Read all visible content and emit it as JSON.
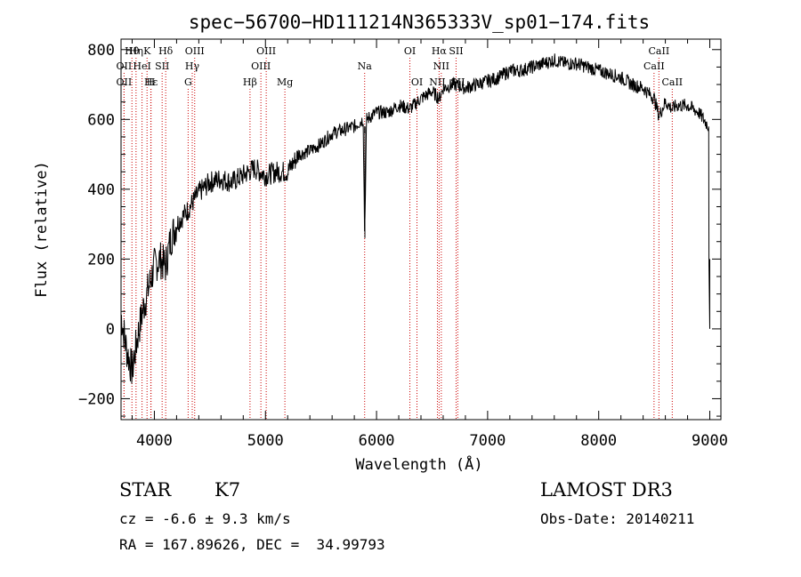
{
  "chart_data": {
    "type": "line",
    "title": "spec−56700−HD111214N365333V_sp01−174.fits",
    "xlabel": "Wavelength (Å)",
    "ylabel": "Flux (relative)",
    "xlim": [
      3700,
      9100
    ],
    "ylim": [
      -260,
      830
    ],
    "xticks": [
      4000,
      5000,
      6000,
      7000,
      8000,
      9000
    ],
    "yticks": [
      -200,
      0,
      200,
      400,
      600,
      800
    ],
    "ytick_labels": [
      "−200",
      "0",
      "200",
      "400",
      "600",
      "800"
    ],
    "spectrum": {
      "name": "flux",
      "x": [
        3700,
        3750,
        3800,
        3850,
        3900,
        3950,
        4000,
        4050,
        4100,
        4150,
        4200,
        4300,
        4400,
        4500,
        4600,
        4700,
        4800,
        4900,
        5000,
        5100,
        5200,
        5300,
        5400,
        5500,
        5600,
        5700,
        5800,
        5880,
        5893,
        5910,
        6000,
        6100,
        6200,
        6300,
        6400,
        6500,
        6563,
        6600,
        6700,
        6800,
        6900,
        7000,
        7100,
        7200,
        7300,
        7400,
        7500,
        7600,
        7700,
        7800,
        7900,
        8000,
        8100,
        8200,
        8300,
        8400,
        8500,
        8542,
        8600,
        8662,
        8700,
        8800,
        8900,
        8990,
        9000
      ],
      "y": [
        40,
        -60,
        -120,
        -20,
        60,
        120,
        180,
        200,
        180,
        260,
        300,
        340,
        390,
        420,
        430,
        420,
        440,
        460,
        440,
        450,
        450,
        500,
        510,
        530,
        560,
        570,
        580,
        600,
        260,
        600,
        620,
        620,
        640,
        630,
        660,
        680,
        660,
        690,
        700,
        690,
        700,
        710,
        720,
        740,
        740,
        750,
        760,
        770,
        760,
        760,
        750,
        740,
        730,
        720,
        700,
        690,
        660,
        610,
        650,
        630,
        640,
        640,
        620,
        580,
        0
      ]
    },
    "lines": [
      {
        "label": "Hθ",
        "x": 3798,
        "row": 0
      },
      {
        "label": "Hη",
        "x": 3835,
        "row": 0
      },
      {
        "label": "K",
        "x": 3934,
        "row": 0
      },
      {
        "label": "Hδ",
        "x": 4102,
        "row": 0
      },
      {
        "label": "OII",
        "x": 3727,
        "row": 1
      },
      {
        "label": "HeI",
        "x": 3889,
        "row": 1
      },
      {
        "label": "SII",
        "x": 4070,
        "row": 1
      },
      {
        "label": "OII",
        "x": 3727,
        "row": 2
      },
      {
        "label": "Hε",
        "x": 3970,
        "row": 2
      },
      {
        "label": "H",
        "x": 3968,
        "row": 2
      },
      {
        "label": "OIII",
        "x": 4363,
        "row": 0
      },
      {
        "label": "Hγ",
        "x": 4341,
        "row": 1
      },
      {
        "label": "G",
        "x": 4304,
        "row": 2
      },
      {
        "label": "OIII",
        "x": 5007,
        "row": 0
      },
      {
        "label": "OIII",
        "x": 4959,
        "row": 1
      },
      {
        "label": "Hβ",
        "x": 4861,
        "row": 2
      },
      {
        "label": "Mg",
        "x": 5175,
        "row": 2
      },
      {
        "label": "Na",
        "x": 5893,
        "row": 1
      },
      {
        "label": "OI",
        "x": 6300,
        "row": 0
      },
      {
        "label": "OI",
        "x": 6364,
        "row": 2
      },
      {
        "label": "Hα",
        "x": 6563,
        "row": 0
      },
      {
        "label": "SII",
        "x": 6716,
        "row": 0
      },
      {
        "label": "NII",
        "x": 6583,
        "row": 1
      },
      {
        "label": "NII",
        "x": 6548,
        "row": 2
      },
      {
        "label": "SII",
        "x": 6731,
        "row": 2
      },
      {
        "label": "CaII",
        "x": 8542,
        "row": 0
      },
      {
        "label": "CaII",
        "x": 8498,
        "row": 1
      },
      {
        "label": "CaII",
        "x": 8662,
        "row": 2
      }
    ]
  },
  "info": {
    "class_label": "STAR",
    "subclass": "K7",
    "survey": "LAMOST DR3",
    "cz_line": "cz = -6.6 ± 9.3 km/s",
    "obs_date": "Obs-Date: 20140211",
    "coords": "RA = 167.89626, DEC =  34.99793"
  },
  "colors": {
    "axis": "#000000",
    "spectrum": "#000000",
    "lines": "#cc0000"
  }
}
